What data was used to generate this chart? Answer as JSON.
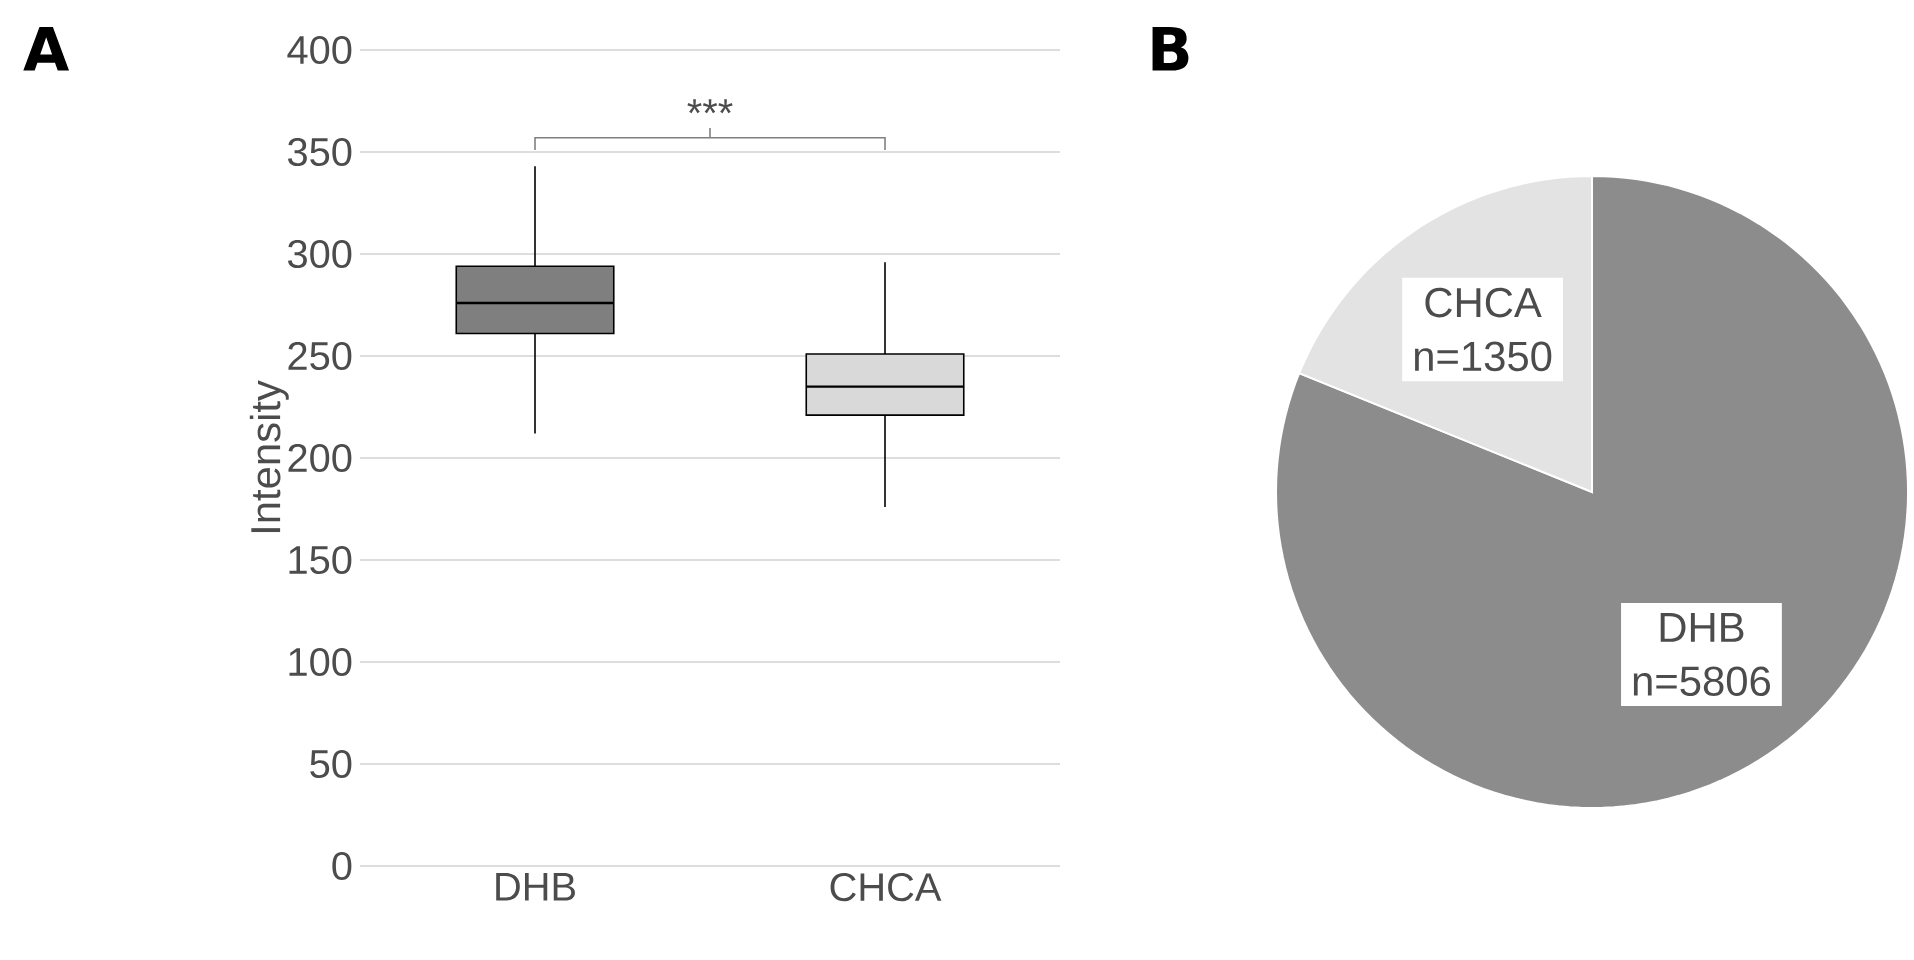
{
  "chart_data": [
    {
      "type": "box",
      "title": "A",
      "ylabel": "Intensity",
      "categories": [
        "DHB",
        "CHCA"
      ],
      "boxes": [
        {
          "low": 212,
          "q1": 261,
          "median": 276,
          "q3": 294,
          "high": 343
        },
        {
          "low": 176,
          "q1": 221,
          "median": 235,
          "q3": 251,
          "high": 296
        }
      ],
      "colors": [
        "#7f7f7f",
        "#d9d9d9"
      ],
      "ylim": [
        0,
        400
      ],
      "yticks": [
        0,
        50,
        100,
        150,
        200,
        250,
        300,
        350,
        400
      ],
      "grid": "y",
      "annotations": [
        "***"
      ]
    },
    {
      "type": "pie",
      "title": "B",
      "categories": [
        "DHB",
        "CHCA"
      ],
      "values": [
        5806,
        1350
      ],
      "colors": [
        "#8c8c8c",
        "#e3e3e3"
      ],
      "value_labels": [
        "n=5806",
        "n=1350"
      ]
    }
  ]
}
